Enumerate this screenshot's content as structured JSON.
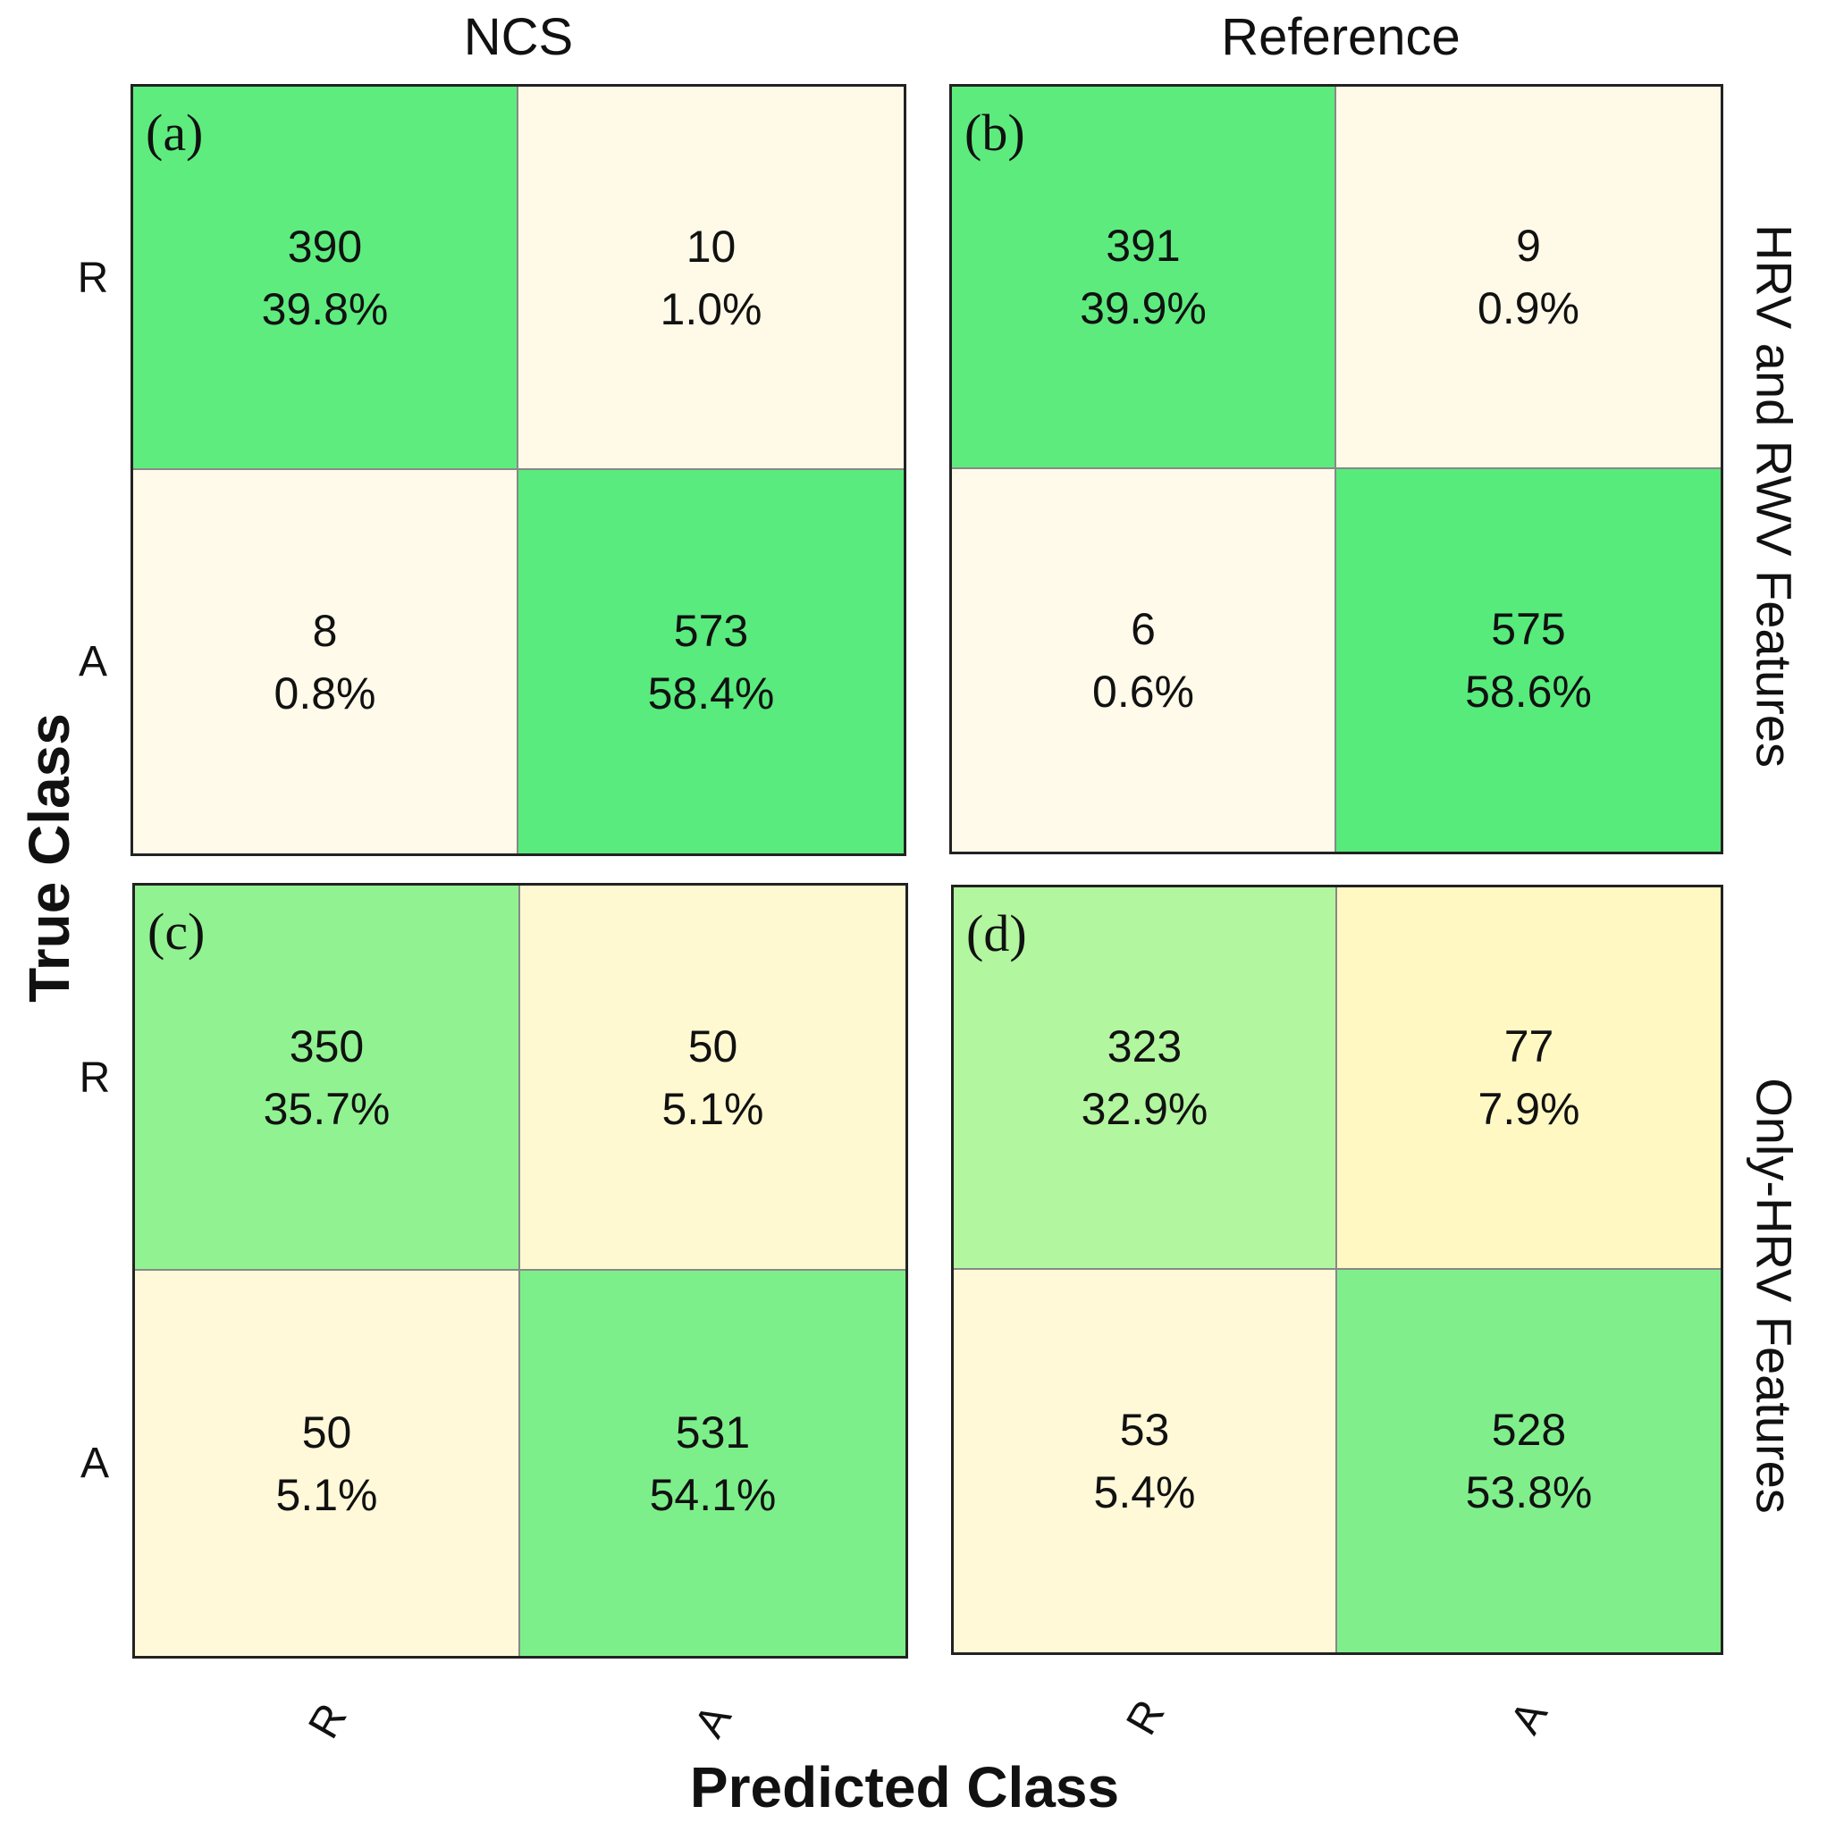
{
  "chart_data": [
    {
      "type": "heatmap",
      "panel": "(a)",
      "column": "NCS",
      "row": "HRV and RWV Features",
      "xlabel": "Predicted Class",
      "ylabel": "True Class",
      "x_tick_labels": [
        "R",
        "A"
      ],
      "y_tick_labels": [
        "R",
        "A"
      ],
      "counts": [
        [
          390,
          10
        ],
        [
          8,
          573
        ]
      ],
      "percents": [
        "39.8%",
        "1.0%",
        "0.8%",
        "58.4%"
      ]
    },
    {
      "type": "heatmap",
      "panel": "(b)",
      "column": "Reference",
      "row": "HRV and RWV Features",
      "xlabel": "Predicted Class",
      "ylabel": "True Class",
      "x_tick_labels": [
        "R",
        "A"
      ],
      "y_tick_labels": [
        "R",
        "A"
      ],
      "counts": [
        [
          391,
          9
        ],
        [
          6,
          575
        ]
      ],
      "percents": [
        "39.9%",
        "0.9%",
        "0.6%",
        "58.6%"
      ]
    },
    {
      "type": "heatmap",
      "panel": "(c)",
      "column": "NCS",
      "row": "Only-HRV Features",
      "xlabel": "Predicted Class",
      "ylabel": "True Class",
      "x_tick_labels": [
        "R",
        "A"
      ],
      "y_tick_labels": [
        "R",
        "A"
      ],
      "counts": [
        [
          350,
          50
        ],
        [
          50,
          531
        ]
      ],
      "percents": [
        "35.7%",
        "5.1%",
        "5.1%",
        "54.1%"
      ]
    },
    {
      "type": "heatmap",
      "panel": "(d)",
      "column": "Reference",
      "row": "Only-HRV Features",
      "xlabel": "Predicted Class",
      "ylabel": "True Class",
      "x_tick_labels": [
        "R",
        "A"
      ],
      "y_tick_labels": [
        "R",
        "A"
      ],
      "counts": [
        [
          323,
          77
        ],
        [
          53,
          528
        ]
      ],
      "percents": [
        "32.9%",
        "7.9%",
        "5.4%",
        "53.8%"
      ]
    }
  ],
  "labels": {
    "col_titles": [
      "NCS",
      "Reference"
    ],
    "row_titles": [
      "HRV and RWV Features",
      "Only-HRV Features"
    ],
    "xlabel": "Predicted Class",
    "ylabel": "True Class"
  },
  "colors": {
    "grid": "#222222",
    "text": "#111111"
  }
}
